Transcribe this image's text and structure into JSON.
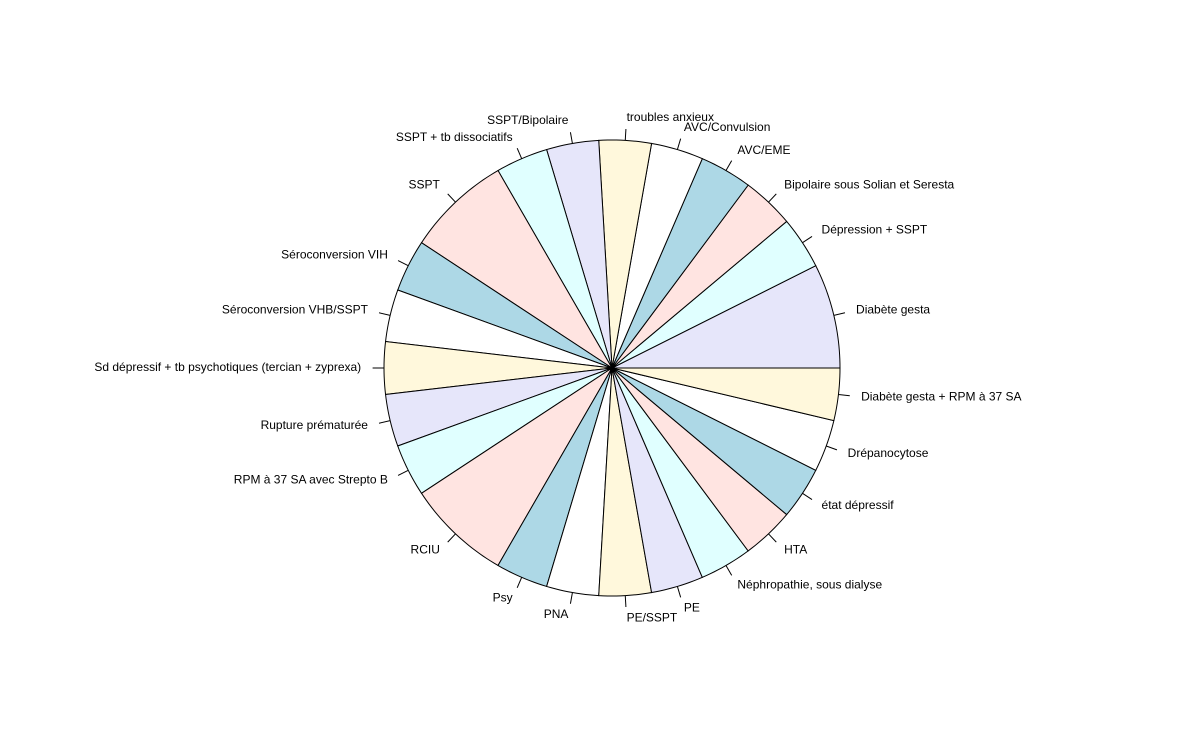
{
  "chart_data": {
    "type": "pie",
    "title": "",
    "labels": [
      "Diabète gesta",
      "Dépression + SSPT",
      "Bipolaire sous Solian et Seresta",
      "AVC/EME",
      "AVC/Convulsion",
      "troubles anxieux",
      "SSPT/Bipolaire",
      "SSPT + tb dissociatifs",
      "SSPT",
      "Séroconversion VIH",
      "Séroconversion VHB/SSPT",
      "Sd dépressif + tb psychotiques (tercian + zyprexa)",
      "Rupture prématurée",
      "RPM à 37 SA avec Strepto B",
      "RCIU",
      "Psy",
      "PNA",
      "PE/SSPT",
      "PE",
      "Néphropathie, sous dialyse",
      "HTA",
      "état dépressif",
      "Drépanocytose",
      "Diabète gesta + RPM à 37 SA"
    ],
    "values": [
      2,
      1,
      1,
      1,
      1,
      1,
      1,
      1,
      2,
      1,
      1,
      1,
      1,
      1,
      2,
      1,
      1,
      1,
      1,
      1,
      1,
      1,
      1,
      1
    ],
    "colors": [
      "#E6E6FA",
      "#E0FFFF",
      "#FFE4E1",
      "#ADD8E6",
      "#FFFFFF",
      "#FFF8DC"
    ],
    "start_angle_deg": 0,
    "direction": "counterclockwise",
    "legend": "none"
  }
}
